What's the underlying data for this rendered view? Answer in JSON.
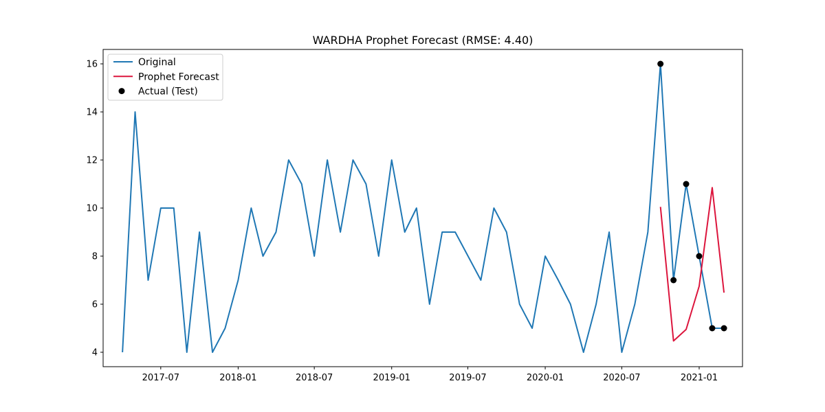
{
  "chart_data": {
    "type": "line",
    "title": "WARDHA Prophet Forecast (RMSE: 4.40)",
    "xlabel": "",
    "ylabel": "",
    "x_tick_labels": [
      "2017-07",
      "2018-01",
      "2018-07",
      "2019-01",
      "2019-07",
      "2020-01",
      "2020-07",
      "2021-01"
    ],
    "y_tick_labels": [
      "4",
      "6",
      "8",
      "10",
      "12",
      "14",
      "16"
    ],
    "ylim": [
      3.4,
      16.6
    ],
    "xlim": [
      "2017-02-14",
      "2021-04-14"
    ],
    "grid": false,
    "legend_position": "upper-left",
    "series": [
      {
        "name": "Original",
        "kind": "line",
        "color": "#1f77b4",
        "points": [
          {
            "x": "2017-04-01",
            "y": 4
          },
          {
            "x": "2017-05-01",
            "y": 14
          },
          {
            "x": "2017-06-01",
            "y": 7
          },
          {
            "x": "2017-07-01",
            "y": 10
          },
          {
            "x": "2017-08-01",
            "y": 10
          },
          {
            "x": "2017-09-01",
            "y": 4
          },
          {
            "x": "2017-10-01",
            "y": 9
          },
          {
            "x": "2017-11-01",
            "y": 4
          },
          {
            "x": "2017-12-01",
            "y": 5
          },
          {
            "x": "2018-01-01",
            "y": 7
          },
          {
            "x": "2018-02-01",
            "y": 10
          },
          {
            "x": "2018-03-01",
            "y": 8
          },
          {
            "x": "2018-04-01",
            "y": 9
          },
          {
            "x": "2018-05-01",
            "y": 12
          },
          {
            "x": "2018-06-01",
            "y": 11
          },
          {
            "x": "2018-07-01",
            "y": 8
          },
          {
            "x": "2018-08-01",
            "y": 12
          },
          {
            "x": "2018-09-01",
            "y": 9
          },
          {
            "x": "2018-10-01",
            "y": 12
          },
          {
            "x": "2018-11-01",
            "y": 11
          },
          {
            "x": "2018-12-01",
            "y": 8
          },
          {
            "x": "2019-01-01",
            "y": 12
          },
          {
            "x": "2019-02-01",
            "y": 9
          },
          {
            "x": "2019-03-01",
            "y": 10
          },
          {
            "x": "2019-04-01",
            "y": 6
          },
          {
            "x": "2019-05-01",
            "y": 9
          },
          {
            "x": "2019-06-01",
            "y": 9
          },
          {
            "x": "2019-08-01",
            "y": 7
          },
          {
            "x": "2019-09-01",
            "y": 10
          },
          {
            "x": "2019-10-01",
            "y": 9
          },
          {
            "x": "2019-11-01",
            "y": 6
          },
          {
            "x": "2019-12-01",
            "y": 5
          },
          {
            "x": "2020-01-01",
            "y": 8
          },
          {
            "x": "2020-02-01",
            "y": 7
          },
          {
            "x": "2020-03-01",
            "y": 6
          },
          {
            "x": "2020-04-01",
            "y": 4
          },
          {
            "x": "2020-05-01",
            "y": 6
          },
          {
            "x": "2020-06-01",
            "y": 9
          },
          {
            "x": "2020-07-01",
            "y": 4
          },
          {
            "x": "2020-08-01",
            "y": 6
          },
          {
            "x": "2020-09-01",
            "y": 9
          },
          {
            "x": "2020-10-01",
            "y": 16
          },
          {
            "x": "2020-11-01",
            "y": 7
          },
          {
            "x": "2020-12-01",
            "y": 11
          },
          {
            "x": "2021-01-01",
            "y": 8
          },
          {
            "x": "2021-02-01",
            "y": 5
          },
          {
            "x": "2021-03-01",
            "y": 5
          }
        ]
      },
      {
        "name": "Prophet Forecast",
        "kind": "line",
        "color": "#dc143c",
        "points": [
          {
            "x": "2020-10-01",
            "y": 10.05
          },
          {
            "x": "2020-11-01",
            "y": 4.47
          },
          {
            "x": "2020-12-01",
            "y": 4.95
          },
          {
            "x": "2021-01-01",
            "y": 6.75
          },
          {
            "x": "2021-02-01",
            "y": 10.85
          },
          {
            "x": "2021-03-01",
            "y": 6.48
          }
        ]
      },
      {
        "name": "Actual (Test)",
        "kind": "scatter",
        "color": "#000000",
        "points": [
          {
            "x": "2020-10-01",
            "y": 16
          },
          {
            "x": "2020-11-01",
            "y": 7
          },
          {
            "x": "2020-12-01",
            "y": 11
          },
          {
            "x": "2021-01-01",
            "y": 8
          },
          {
            "x": "2021-02-01",
            "y": 5
          },
          {
            "x": "2021-03-01",
            "y": 5
          }
        ]
      }
    ]
  }
}
